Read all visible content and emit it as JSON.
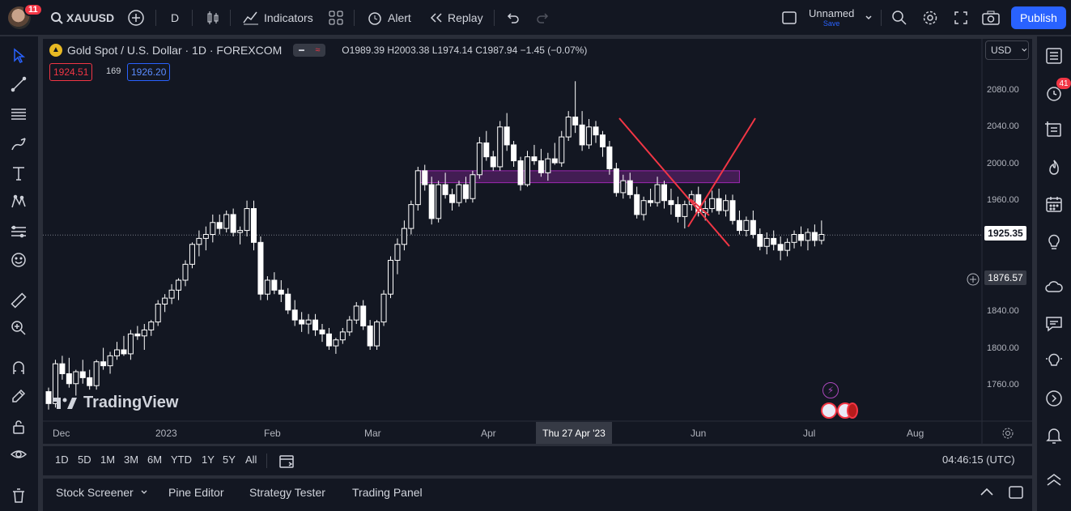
{
  "topbar": {
    "notification_count": "11",
    "symbol": "XAUUSD",
    "interval": "D",
    "indicators_label": "Indicators",
    "alert_label": "Alert",
    "replay_label": "Replay",
    "layout_name": "Unnamed",
    "layout_save": "Save",
    "publish_label": "Publish"
  },
  "legend": {
    "title": "Gold Spot / U.S. Dollar · 1D · FOREXCOM",
    "open_label": "O",
    "open": "1989.39",
    "high_label": "H",
    "high": "2003.38",
    "low_label": "L",
    "low": "1974.14",
    "close_label": "C",
    "close": "1987.94",
    "change": "−1.45 (−0.07%)",
    "bid": "1924.51",
    "spread": "169",
    "ask": "1926.20"
  },
  "price_scale": {
    "currency": "USD",
    "labels": [
      "2080.00",
      "2040.00",
      "2000.00",
      "1960.00",
      "1925.35",
      "1876.57",
      "1840.00",
      "1800.00",
      "1760.00"
    ],
    "current_price": "1925.35",
    "crosshair_price": "1876.57"
  },
  "time_scale": {
    "labels": [
      "Dec",
      "2023",
      "Feb",
      "Mar",
      "Apr",
      "Jun",
      "Jul",
      "Aug"
    ],
    "crosshair_date": "Thu 27 Apr '23"
  },
  "watermark": "TradingView",
  "ranges": [
    "1D",
    "5D",
    "1M",
    "3M",
    "6M",
    "YTD",
    "1Y",
    "5Y",
    "All"
  ],
  "clock": "04:46:15 (UTC)",
  "panels": [
    "Stock Screener",
    "Pine Editor",
    "Strategy Tester",
    "Trading Panel"
  ],
  "right_notification_count": "41",
  "colors": {
    "background": "#131722",
    "accent": "#2962ff",
    "down": "#f23645",
    "zone": "#9c27b0",
    "candle": "#ffffff"
  },
  "chart_data": {
    "type": "candlestick",
    "title": "Gold Spot / U.S. Dollar · 1D · FOREXCOM",
    "ylim": [
      1740,
      2090
    ],
    "x": [
      "Dec",
      "2023",
      "Feb",
      "Mar",
      "Apr",
      "Jun",
      "Jul",
      "Aug"
    ],
    "series": [
      {
        "values": [
          [
            1768,
            1772,
            1750,
            1756
          ],
          [
            1756,
            1800,
            1752,
            1796
          ],
          [
            1796,
            1804,
            1780,
            1786
          ],
          [
            1786,
            1802,
            1772,
            1776
          ],
          [
            1776,
            1790,
            1764,
            1788
          ],
          [
            1788,
            1800,
            1776,
            1782
          ],
          [
            1782,
            1790,
            1770,
            1774
          ],
          [
            1774,
            1800,
            1770,
            1798
          ],
          [
            1798,
            1812,
            1790,
            1794
          ],
          [
            1794,
            1808,
            1786,
            1804
          ],
          [
            1804,
            1818,
            1800,
            1810
          ],
          [
            1810,
            1824,
            1804,
            1806
          ],
          [
            1806,
            1830,
            1800,
            1826
          ],
          [
            1826,
            1834,
            1820,
            1824
          ],
          [
            1824,
            1836,
            1810,
            1830
          ],
          [
            1830,
            1840,
            1824,
            1838
          ],
          [
            1838,
            1860,
            1834,
            1856
          ],
          [
            1856,
            1866,
            1848,
            1862
          ],
          [
            1862,
            1876,
            1856,
            1870
          ],
          [
            1870,
            1882,
            1860,
            1880
          ],
          [
            1880,
            1900,
            1874,
            1896
          ],
          [
            1896,
            1918,
            1892,
            1916
          ],
          [
            1916,
            1930,
            1904,
            1922
          ],
          [
            1922,
            1934,
            1910,
            1926
          ],
          [
            1926,
            1946,
            1918,
            1938
          ],
          [
            1938,
            1946,
            1926,
            1932
          ],
          [
            1932,
            1950,
            1928,
            1946
          ],
          [
            1946,
            1952,
            1924,
            1928
          ],
          [
            1928,
            1934,
            1916,
            1930
          ],
          [
            1930,
            1960,
            1924,
            1952
          ],
          [
            1952,
            1960,
            1910,
            1918
          ],
          [
            1918,
            1924,
            1860,
            1866
          ],
          [
            1866,
            1884,
            1860,
            1880
          ],
          [
            1880,
            1888,
            1866,
            1870
          ],
          [
            1870,
            1880,
            1858,
            1866
          ],
          [
            1866,
            1872,
            1846,
            1850
          ],
          [
            1850,
            1860,
            1834,
            1840
          ],
          [
            1840,
            1848,
            1828,
            1836
          ],
          [
            1836,
            1846,
            1826,
            1840
          ],
          [
            1840,
            1846,
            1824,
            1830
          ],
          [
            1830,
            1836,
            1818,
            1826
          ],
          [
            1826,
            1832,
            1810,
            1814
          ],
          [
            1814,
            1822,
            1806,
            1820
          ],
          [
            1820,
            1832,
            1816,
            1828
          ],
          [
            1828,
            1844,
            1824,
            1840
          ],
          [
            1840,
            1858,
            1836,
            1854
          ],
          [
            1854,
            1860,
            1830,
            1834
          ],
          [
            1834,
            1840,
            1810,
            1814
          ],
          [
            1814,
            1840,
            1810,
            1838
          ],
          [
            1838,
            1870,
            1834,
            1866
          ],
          [
            1866,
            1904,
            1862,
            1900
          ],
          [
            1900,
            1922,
            1886,
            1916
          ],
          [
            1916,
            1940,
            1910,
            1932
          ],
          [
            1932,
            1960,
            1926,
            1956
          ],
          [
            1956,
            1994,
            1950,
            1990
          ],
          [
            1990,
            1996,
            1970,
            1976
          ],
          [
            1976,
            1984,
            1936,
            1942
          ],
          [
            1942,
            1980,
            1938,
            1976
          ],
          [
            1976,
            1988,
            1962,
            1966
          ],
          [
            1966,
            1972,
            1950,
            1958
          ],
          [
            1958,
            1980,
            1954,
            1976
          ],
          [
            1976,
            1984,
            1958,
            1962
          ],
          [
            1962,
            1990,
            1958,
            1986
          ],
          [
            1986,
            2024,
            1982,
            2018
          ],
          [
            2018,
            2030,
            2000,
            2004
          ],
          [
            2004,
            2010,
            1990,
            1994
          ],
          [
            1994,
            2040,
            1990,
            2034
          ],
          [
            2034,
            2048,
            2010,
            2016
          ],
          [
            2016,
            2020,
            1994,
            2000
          ],
          [
            2000,
            2004,
            1970,
            1976
          ],
          [
            1976,
            2010,
            1974,
            2004
          ],
          [
            2004,
            2016,
            1996,
            2000
          ],
          [
            2000,
            2012,
            1984,
            1988
          ],
          [
            1988,
            2008,
            1980,
            2002
          ],
          [
            2002,
            2018,
            1996,
            1998
          ],
          [
            1998,
            2030,
            1994,
            2024
          ],
          [
            2024,
            2050,
            2020,
            2044
          ],
          [
            2044,
            2080,
            2028,
            2036
          ],
          [
            2036,
            2050,
            2010,
            2016
          ],
          [
            2016,
            2042,
            2012,
            2034
          ],
          [
            2034,
            2040,
            2018,
            2026
          ],
          [
            2026,
            2030,
            2004,
            2014
          ],
          [
            2014,
            2020,
            1986,
            1992
          ],
          [
            1992,
            1998,
            1964,
            1968
          ],
          [
            1968,
            1986,
            1962,
            1980
          ],
          [
            1980,
            1988,
            1962,
            1966
          ],
          [
            1966,
            1974,
            1942,
            1946
          ],
          [
            1946,
            1964,
            1940,
            1960
          ],
          [
            1960,
            1972,
            1954,
            1958
          ],
          [
            1958,
            1984,
            1954,
            1976
          ],
          [
            1976,
            1980,
            1952,
            1960
          ],
          [
            1960,
            1972,
            1946,
            1956
          ],
          [
            1956,
            1964,
            1938,
            1944
          ],
          [
            1944,
            1960,
            1932,
            1956
          ],
          [
            1956,
            1970,
            1950,
            1966
          ],
          [
            1966,
            1974,
            1944,
            1948
          ],
          [
            1948,
            1960,
            1940,
            1952
          ],
          [
            1952,
            1970,
            1948,
            1962
          ],
          [
            1962,
            1972,
            1946,
            1950
          ],
          [
            1950,
            1966,
            1944,
            1960
          ],
          [
            1960,
            1966,
            1936,
            1940
          ],
          [
            1940,
            1950,
            1926,
            1930
          ],
          [
            1930,
            1944,
            1924,
            1940
          ],
          [
            1940,
            1950,
            1922,
            1926
          ],
          [
            1926,
            1932,
            1910,
            1914
          ],
          [
            1914,
            1928,
            1906,
            1922
          ],
          [
            1922,
            1930,
            1910,
            1916
          ],
          [
            1916,
            1924,
            1900,
            1910
          ],
          [
            1910,
            1922,
            1904,
            1918
          ],
          [
            1918,
            1930,
            1912,
            1926
          ],
          [
            1926,
            1934,
            1914,
            1920
          ],
          [
            1920,
            1932,
            1910,
            1928
          ],
          [
            1928,
            1936,
            1914,
            1920
          ],
          [
            1920,
            1940,
            1916,
            1926
          ]
        ]
      }
    ],
    "zone": {
      "from": 1978,
      "to": 1990
    },
    "zone_label": "",
    "drawings": [
      "red trend line",
      "red cross"
    ]
  }
}
